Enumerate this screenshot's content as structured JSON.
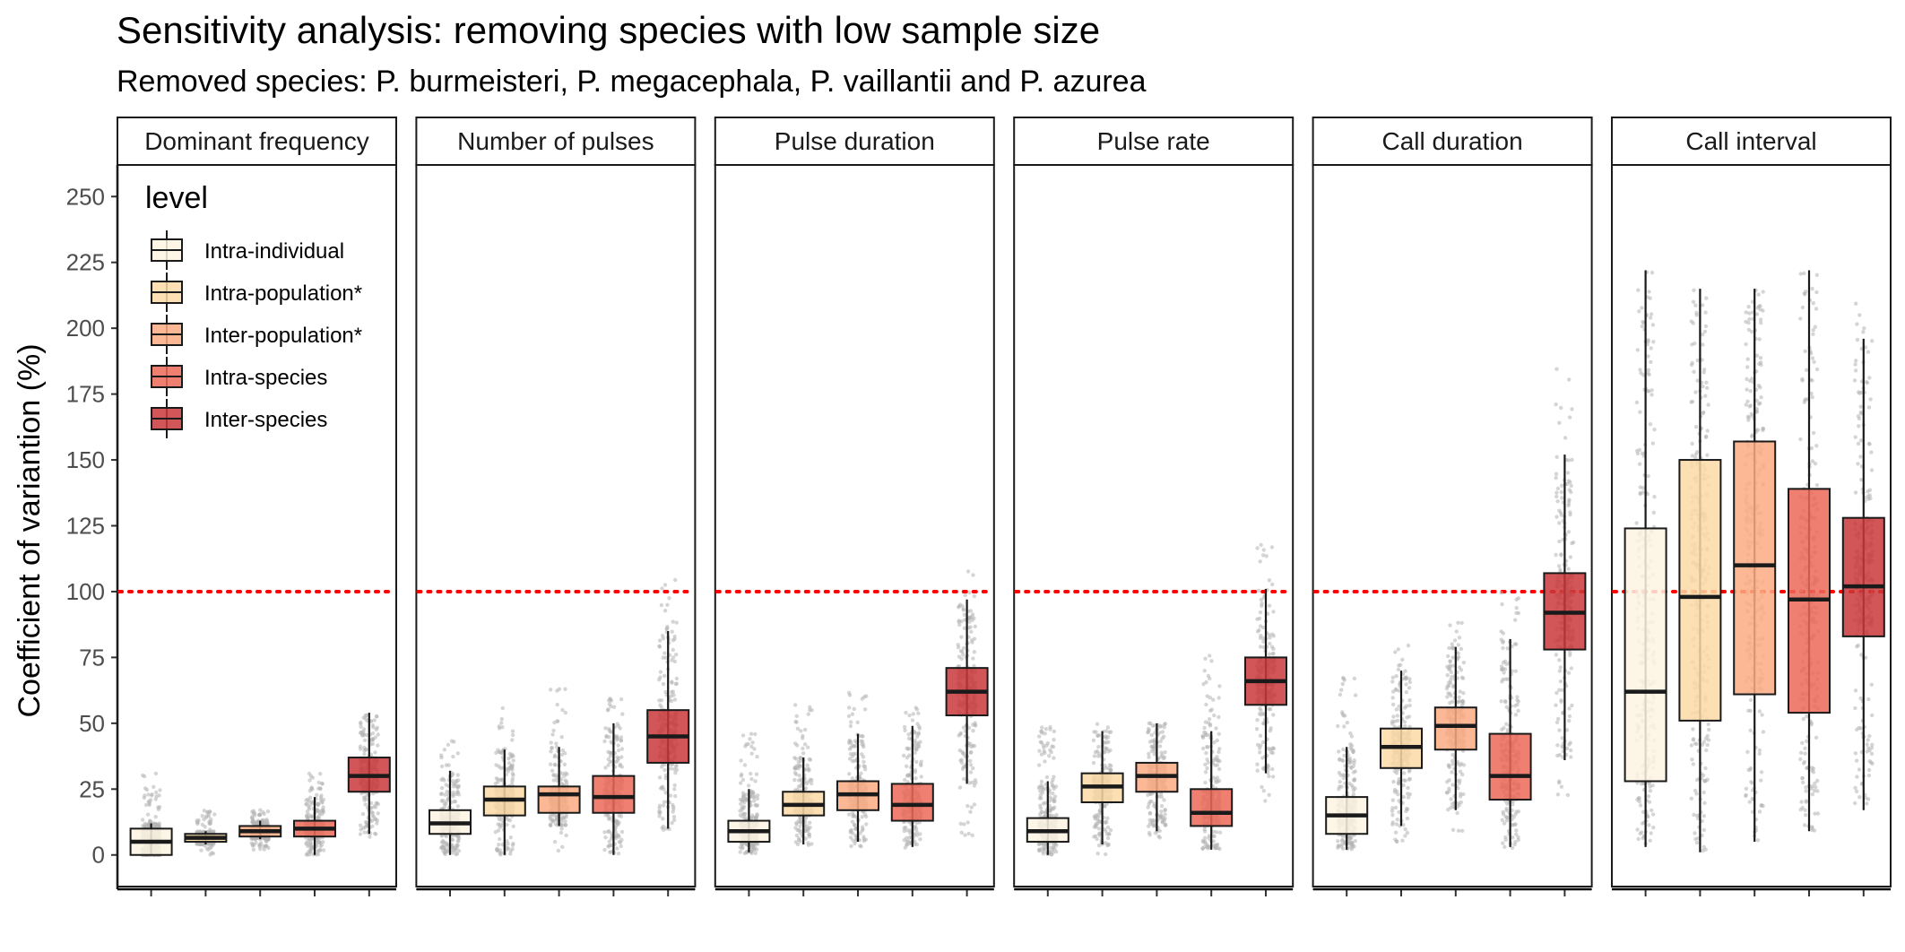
{
  "chart_data": {
    "type": "boxplot",
    "title": "Sensitivity analysis: removing species with low sample size",
    "subtitle": "Removed species: P. burmeisteri, P. megacephala, P. vaillantii and P. azurea",
    "ylabel": "Coefficient of variantion (%)",
    "xlabel": "",
    "ylim": [
      -12,
      262
    ],
    "yticks": [
      0,
      25,
      50,
      75,
      100,
      125,
      150,
      175,
      200,
      225,
      250
    ],
    "reference_line": {
      "y": 100,
      "color": "#ff0000",
      "style": "dotted"
    },
    "legend": {
      "title": "level",
      "placement": "top-left",
      "entries": [
        "Intra-individual",
        "Intra-population*",
        "Inter-population*",
        "Intra-species",
        "Inter-species"
      ]
    },
    "level_colors": [
      "#fdf3e2",
      "#fcd9a4",
      "#fbab83",
      "#ec6a58",
      "#ca373a"
    ],
    "point_color": "#b3b3b3",
    "panels": [
      {
        "name": "Dominant frequency",
        "boxes": [
          {
            "min": 0,
            "q1": 0,
            "median": 5,
            "q3": 10,
            "max": 12,
            "pts_min": 0,
            "pts_max": 31
          },
          {
            "min": 4,
            "q1": 5,
            "median": 6.5,
            "q3": 8,
            "max": 9,
            "pts_min": 0,
            "pts_max": 17
          },
          {
            "min": 6,
            "q1": 7,
            "median": 9,
            "q3": 11,
            "max": 13,
            "pts_min": 2,
            "pts_max": 18
          },
          {
            "min": 0,
            "q1": 7,
            "median": 10,
            "q3": 13,
            "max": 22,
            "pts_min": 0,
            "pts_max": 31
          },
          {
            "min": 8,
            "q1": 24,
            "median": 30,
            "q3": 37,
            "max": 54,
            "pts_min": 5,
            "pts_max": 55
          }
        ]
      },
      {
        "name": "Number of pulses",
        "boxes": [
          {
            "min": 0,
            "q1": 8,
            "median": 12,
            "q3": 17,
            "max": 32,
            "pts_min": 0,
            "pts_max": 45
          },
          {
            "min": 0,
            "q1": 15,
            "median": 21,
            "q3": 26,
            "max": 40,
            "pts_min": 0,
            "pts_max": 56
          },
          {
            "min": 11,
            "q1": 16,
            "median": 23,
            "q3": 26,
            "max": 41,
            "pts_min": 0,
            "pts_max": 65
          },
          {
            "min": 0,
            "q1": 16,
            "median": 22,
            "q3": 30,
            "max": 50,
            "pts_min": 0,
            "pts_max": 60
          },
          {
            "min": 10,
            "q1": 35,
            "median": 45,
            "q3": 55,
            "max": 85,
            "pts_min": 8,
            "pts_max": 105
          }
        ]
      },
      {
        "name": "Pulse duration",
        "boxes": [
          {
            "min": 1,
            "q1": 5,
            "median": 9,
            "q3": 13,
            "max": 25,
            "pts_min": 0,
            "pts_max": 47
          },
          {
            "min": 4,
            "q1": 15,
            "median": 19,
            "q3": 24,
            "max": 37,
            "pts_min": 2,
            "pts_max": 61
          },
          {
            "min": 5,
            "q1": 17,
            "median": 23,
            "q3": 28,
            "max": 46,
            "pts_min": 3,
            "pts_max": 63
          },
          {
            "min": 3,
            "q1": 13,
            "median": 19,
            "q3": 27,
            "max": 49,
            "pts_min": 2,
            "pts_max": 58
          },
          {
            "min": 27,
            "q1": 53,
            "median": 62,
            "q3": 71,
            "max": 97,
            "pts_min": 5,
            "pts_max": 108
          }
        ]
      },
      {
        "name": "Pulse rate",
        "boxes": [
          {
            "min": 0,
            "q1": 5,
            "median": 9,
            "q3": 14,
            "max": 28,
            "pts_min": 0,
            "pts_max": 50
          },
          {
            "min": 4,
            "q1": 20,
            "median": 26,
            "q3": 31,
            "max": 47,
            "pts_min": 0,
            "pts_max": 50
          },
          {
            "min": 9,
            "q1": 24,
            "median": 30,
            "q3": 35,
            "max": 50,
            "pts_min": 6,
            "pts_max": 52
          },
          {
            "min": 2,
            "q1": 11,
            "median": 16,
            "q3": 25,
            "max": 47,
            "pts_min": 2,
            "pts_max": 76
          },
          {
            "min": 31,
            "q1": 57,
            "median": 66,
            "q3": 75,
            "max": 101,
            "pts_min": 18,
            "pts_max": 120
          }
        ]
      },
      {
        "name": "Call duration",
        "boxes": [
          {
            "min": 2,
            "q1": 8,
            "median": 15,
            "q3": 22,
            "max": 41,
            "pts_min": 0,
            "pts_max": 68
          },
          {
            "min": 11,
            "q1": 33,
            "median": 41,
            "q3": 48,
            "max": 70,
            "pts_min": 4,
            "pts_max": 80
          },
          {
            "min": 17,
            "q1": 40,
            "median": 49,
            "q3": 56,
            "max": 79,
            "pts_min": 8,
            "pts_max": 90
          },
          {
            "min": 3,
            "q1": 21,
            "median": 30,
            "q3": 46,
            "max": 82,
            "pts_min": 2,
            "pts_max": 102
          },
          {
            "min": 36,
            "q1": 78,
            "median": 92,
            "q3": 107,
            "max": 152,
            "pts_min": 22,
            "pts_max": 191
          }
        ]
      },
      {
        "name": "Call interval",
        "boxes": [
          {
            "min": 3,
            "q1": 28,
            "median": 62,
            "q3": 124,
            "max": 222,
            "pts_min": 3,
            "pts_max": 222
          },
          {
            "min": 1,
            "q1": 51,
            "median": 98,
            "q3": 150,
            "max": 215,
            "pts_min": 1,
            "pts_max": 215
          },
          {
            "min": 5,
            "q1": 61,
            "median": 110,
            "q3": 157,
            "max": 215,
            "pts_min": 5,
            "pts_max": 215
          },
          {
            "min": 9,
            "q1": 54,
            "median": 97,
            "q3": 139,
            "max": 222,
            "pts_min": 9,
            "pts_max": 222
          },
          {
            "min": 17,
            "q1": 83,
            "median": 102,
            "q3": 128,
            "max": 196,
            "pts_min": 17,
            "pts_max": 218
          }
        ]
      }
    ]
  }
}
